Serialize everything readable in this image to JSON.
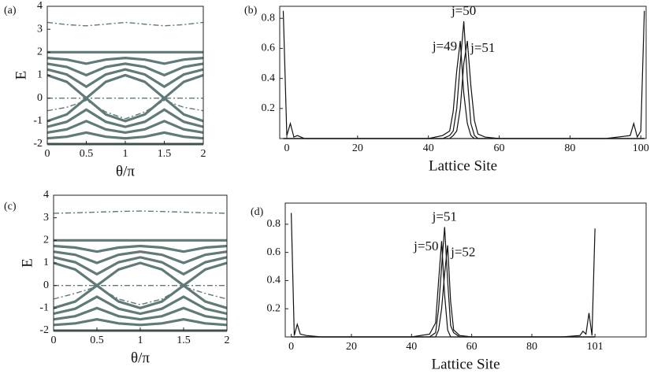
{
  "chart_data": [
    {
      "type": "line",
      "panel_label": "(a)",
      "xlabel": "θ/π",
      "ylabel": "E",
      "xlim": [
        0,
        2
      ],
      "ylim": [
        -2,
        4
      ],
      "xticks": [
        0,
        0.5,
        1,
        1.5,
        2
      ],
      "yticks": [
        -2,
        -1,
        0,
        1,
        2,
        3,
        4
      ],
      "x": [
        0,
        0.25,
        0.5,
        0.75,
        1,
        1.25,
        1.5,
        1.75,
        2
      ],
      "series": [
        {
          "color": "#5f7a78",
          "values": [
            1,
            0.71,
            0,
            0.71,
            1,
            0.71,
            0,
            0.71,
            1
          ]
        },
        {
          "color": "#5f7a78",
          "values": [
            1.25,
            1.03,
            0.5,
            1.03,
            1.25,
            1.03,
            0.5,
            1.03,
            1.25
          ]
        },
        {
          "color": "#5f7a78",
          "values": [
            1.5,
            1.36,
            1,
            1.36,
            1.5,
            1.36,
            1,
            1.36,
            1.5
          ]
        },
        {
          "color": "#5f7a78",
          "values": [
            1.75,
            1.68,
            1.5,
            1.68,
            1.75,
            1.68,
            1.5,
            1.68,
            1.75
          ]
        },
        {
          "color": "#5f7a78",
          "values": [
            2,
            2,
            2,
            2,
            2,
            2,
            2,
            2,
            2
          ]
        },
        {
          "color": "#5f7a78",
          "values": [
            -1,
            -0.71,
            0,
            -0.71,
            -1,
            -0.71,
            0,
            -0.71,
            -1
          ]
        },
        {
          "color": "#5f7a78",
          "values": [
            -1.25,
            -1.03,
            -0.5,
            -1.03,
            -1.25,
            -1.03,
            -0.5,
            -1.03,
            -1.25
          ]
        },
        {
          "color": "#5f7a78",
          "values": [
            -1.5,
            -1.36,
            -1,
            -1.36,
            -1.5,
            -1.36,
            -1,
            -1.36,
            -1.5
          ]
        },
        {
          "color": "#5f7a78",
          "values": [
            -1.75,
            -1.68,
            -1.5,
            -1.68,
            -1.75,
            -1.68,
            -1.5,
            -1.68,
            -1.75
          ]
        },
        {
          "color": "#5f7a78",
          "values": [
            -2,
            -2,
            -2,
            -2,
            -2,
            -2,
            -2,
            -2,
            -2
          ]
        },
        {
          "color": "#5f7a78",
          "style": "dashdot",
          "values": [
            3.3,
            3.2,
            3.15,
            3.22,
            3.3,
            3.22,
            3.15,
            3.2,
            3.3
          ]
        },
        {
          "color": "#5f7a78",
          "style": "dashdot",
          "values": [
            0,
            0,
            0,
            0,
            0,
            0,
            0,
            0,
            0
          ]
        },
        {
          "color": "#5f7a78",
          "style": "dashdot",
          "values": [
            -0.55,
            -0.4,
            -0.1,
            -0.6,
            -0.9,
            -0.6,
            -0.1,
            -0.4,
            -0.55
          ]
        }
      ]
    },
    {
      "type": "line",
      "panel_label": "(b)",
      "xlabel": "Lattice Site",
      "xlim": [
        -2,
        101.5
      ],
      "ylim": [
        0,
        0.88
      ],
      "xticks": [
        0,
        20,
        40,
        60,
        80,
        100
      ],
      "yticks": [
        0.2,
        0.4,
        0.6,
        0.8
      ],
      "x": [
        -1,
        0,
        1,
        2,
        3,
        5,
        10,
        20,
        30,
        40,
        44,
        46,
        47,
        48,
        49,
        50,
        51,
        52,
        53,
        54,
        56,
        60,
        70,
        80,
        90,
        97,
        98,
        99,
        100,
        101
      ],
      "series": [
        {
          "color": "#111111",
          "values": [
            0.85,
            0.02,
            0.1,
            0.01,
            0.02,
            0,
            0,
            0,
            0,
            0,
            0,
            0,
            0,
            0,
            0,
            0,
            0,
            0,
            0,
            0,
            0,
            0,
            0,
            0,
            0,
            0.02,
            0.1,
            0.01,
            0.05,
            0.85
          ]
        },
        {
          "name": "j=49",
          "color": "#111111",
          "values": [
            0,
            0,
            0,
            0,
            0,
            0,
            0,
            0,
            0,
            0,
            0.02,
            0.05,
            0.18,
            0.45,
            0.65,
            0.3,
            0.1,
            0.02,
            0,
            0,
            0,
            0,
            0,
            0,
            0,
            0,
            0,
            0,
            0,
            0
          ]
        },
        {
          "name": "j=50",
          "color": "#111111",
          "values": [
            0,
            0,
            0,
            0,
            0,
            0,
            0,
            0,
            0,
            0,
            0,
            0.02,
            0.05,
            0.2,
            0.5,
            0.78,
            0.4,
            0.1,
            0.02,
            0,
            0,
            0,
            0,
            0,
            0,
            0,
            0,
            0,
            0,
            0
          ]
        },
        {
          "name": "j=51",
          "color": "#111111",
          "values": [
            0,
            0,
            0,
            0,
            0,
            0,
            0,
            0,
            0,
            0,
            0,
            0,
            0.02,
            0.05,
            0.2,
            0.5,
            0.65,
            0.35,
            0.12,
            0.03,
            0.01,
            0,
            0,
            0,
            0,
            0,
            0,
            0,
            0,
            0
          ]
        }
      ]
    },
    {
      "type": "line",
      "panel_label": "(c)",
      "xlabel": "θ/π",
      "ylabel": "E",
      "xlim": [
        0,
        2
      ],
      "ylim": [
        -2,
        4
      ],
      "xticks": [
        0,
        0.5,
        1,
        1.5,
        2
      ],
      "yticks": [
        -2,
        -1,
        0,
        1,
        2,
        3,
        4
      ],
      "x": [
        0,
        0.25,
        0.5,
        0.75,
        1,
        1.25,
        1.5,
        1.75,
        2
      ],
      "series": [
        {
          "color": "#5f7a78",
          "values": [
            1,
            0.71,
            0,
            0.71,
            1,
            0.71,
            0,
            0.71,
            1
          ]
        },
        {
          "color": "#5f7a78",
          "values": [
            1.25,
            1.03,
            0.5,
            1.03,
            1.25,
            1.03,
            0.5,
            1.03,
            1.25
          ]
        },
        {
          "color": "#5f7a78",
          "values": [
            1.5,
            1.36,
            1,
            1.36,
            1.5,
            1.36,
            1,
            1.36,
            1.5
          ]
        },
        {
          "color": "#5f7a78",
          "values": [
            1.75,
            1.68,
            1.5,
            1.68,
            1.75,
            1.68,
            1.5,
            1.68,
            1.75
          ]
        },
        {
          "color": "#5f7a78",
          "values": [
            2,
            2,
            2,
            2,
            2,
            2,
            2,
            2,
            2
          ]
        },
        {
          "color": "#5f7a78",
          "values": [
            -1,
            -0.71,
            0,
            -0.71,
            -1,
            -0.71,
            0,
            -0.71,
            -1
          ]
        },
        {
          "color": "#5f7a78",
          "values": [
            -1.25,
            -1.03,
            -0.5,
            -1.03,
            -1.25,
            -1.03,
            -0.5,
            -1.03,
            -1.25
          ]
        },
        {
          "color": "#5f7a78",
          "values": [
            -1.5,
            -1.36,
            -1,
            -1.36,
            -1.5,
            -1.36,
            -1,
            -1.36,
            -1.5
          ]
        },
        {
          "color": "#5f7a78",
          "values": [
            -1.75,
            -1.68,
            -1.5,
            -1.68,
            -1.75,
            -1.68,
            -1.5,
            -1.68,
            -1.75
          ]
        },
        {
          "color": "#5f7a78",
          "values": [
            -2,
            -2,
            -2,
            -2,
            -2,
            -2,
            -2,
            -2,
            -2
          ]
        },
        {
          "color": "#5f7a78",
          "style": "dashdot",
          "values": [
            3.2,
            3.22,
            3.25,
            3.28,
            3.3,
            3.28,
            3.25,
            3.22,
            3.2
          ]
        },
        {
          "color": "#5f7a78",
          "style": "dashdot",
          "values": [
            0,
            0,
            0,
            0,
            0,
            0,
            0,
            0,
            0
          ]
        },
        {
          "color": "#5f7a78",
          "style": "dashdot",
          "values": [
            -0.6,
            -0.35,
            -0.05,
            -0.6,
            -0.85,
            -0.6,
            -0.05,
            -0.35,
            -0.6
          ]
        }
      ]
    },
    {
      "type": "line",
      "panel_label": "(d)",
      "xlabel": "Lattice Site",
      "xlim": [
        -2,
        118
      ],
      "ylim": [
        0,
        0.95
      ],
      "xticks": [
        0,
        20,
        40,
        60,
        80,
        101
      ],
      "yticks": [
        0.2,
        0.4,
        0.6,
        0.8
      ],
      "x": [
        0,
        1,
        2,
        3,
        5,
        10,
        20,
        30,
        40,
        46,
        48,
        49,
        50,
        51,
        52,
        53,
        54,
        56,
        60,
        70,
        80,
        90,
        96,
        97,
        98,
        99,
        100,
        101
      ],
      "series": [
        {
          "color": "#111111",
          "values": [
            0.88,
            0.01,
            0.09,
            0.02,
            0.01,
            0,
            0,
            0,
            0,
            0,
            0,
            0,
            0,
            0,
            0,
            0,
            0,
            0,
            0,
            0,
            0,
            0,
            0.01,
            0.04,
            0.02,
            0.17,
            0.01,
            0.77
          ]
        },
        {
          "name": "j=50",
          "color": "#111111",
          "values": [
            0,
            0,
            0,
            0,
            0,
            0,
            0,
            0,
            0,
            0.02,
            0.1,
            0.4,
            0.68,
            0.3,
            0.05,
            0,
            0,
            0,
            0,
            0,
            0,
            0,
            0,
            0,
            0,
            0,
            0,
            0
          ]
        },
        {
          "name": "j=51",
          "color": "#111111",
          "values": [
            0,
            0,
            0,
            0,
            0,
            0,
            0,
            0,
            0,
            0,
            0.03,
            0.2,
            0.5,
            0.78,
            0.4,
            0.08,
            0.03,
            0,
            0,
            0,
            0,
            0,
            0,
            0,
            0,
            0,
            0,
            0
          ]
        },
        {
          "name": "j=52",
          "color": "#111111",
          "values": [
            0,
            0,
            0,
            0,
            0,
            0,
            0,
            0,
            0,
            0,
            0,
            0.05,
            0.2,
            0.45,
            0.65,
            0.25,
            0.05,
            0.01,
            0,
            0,
            0,
            0,
            0,
            0,
            0,
            0,
            0,
            0
          ]
        }
      ]
    }
  ]
}
